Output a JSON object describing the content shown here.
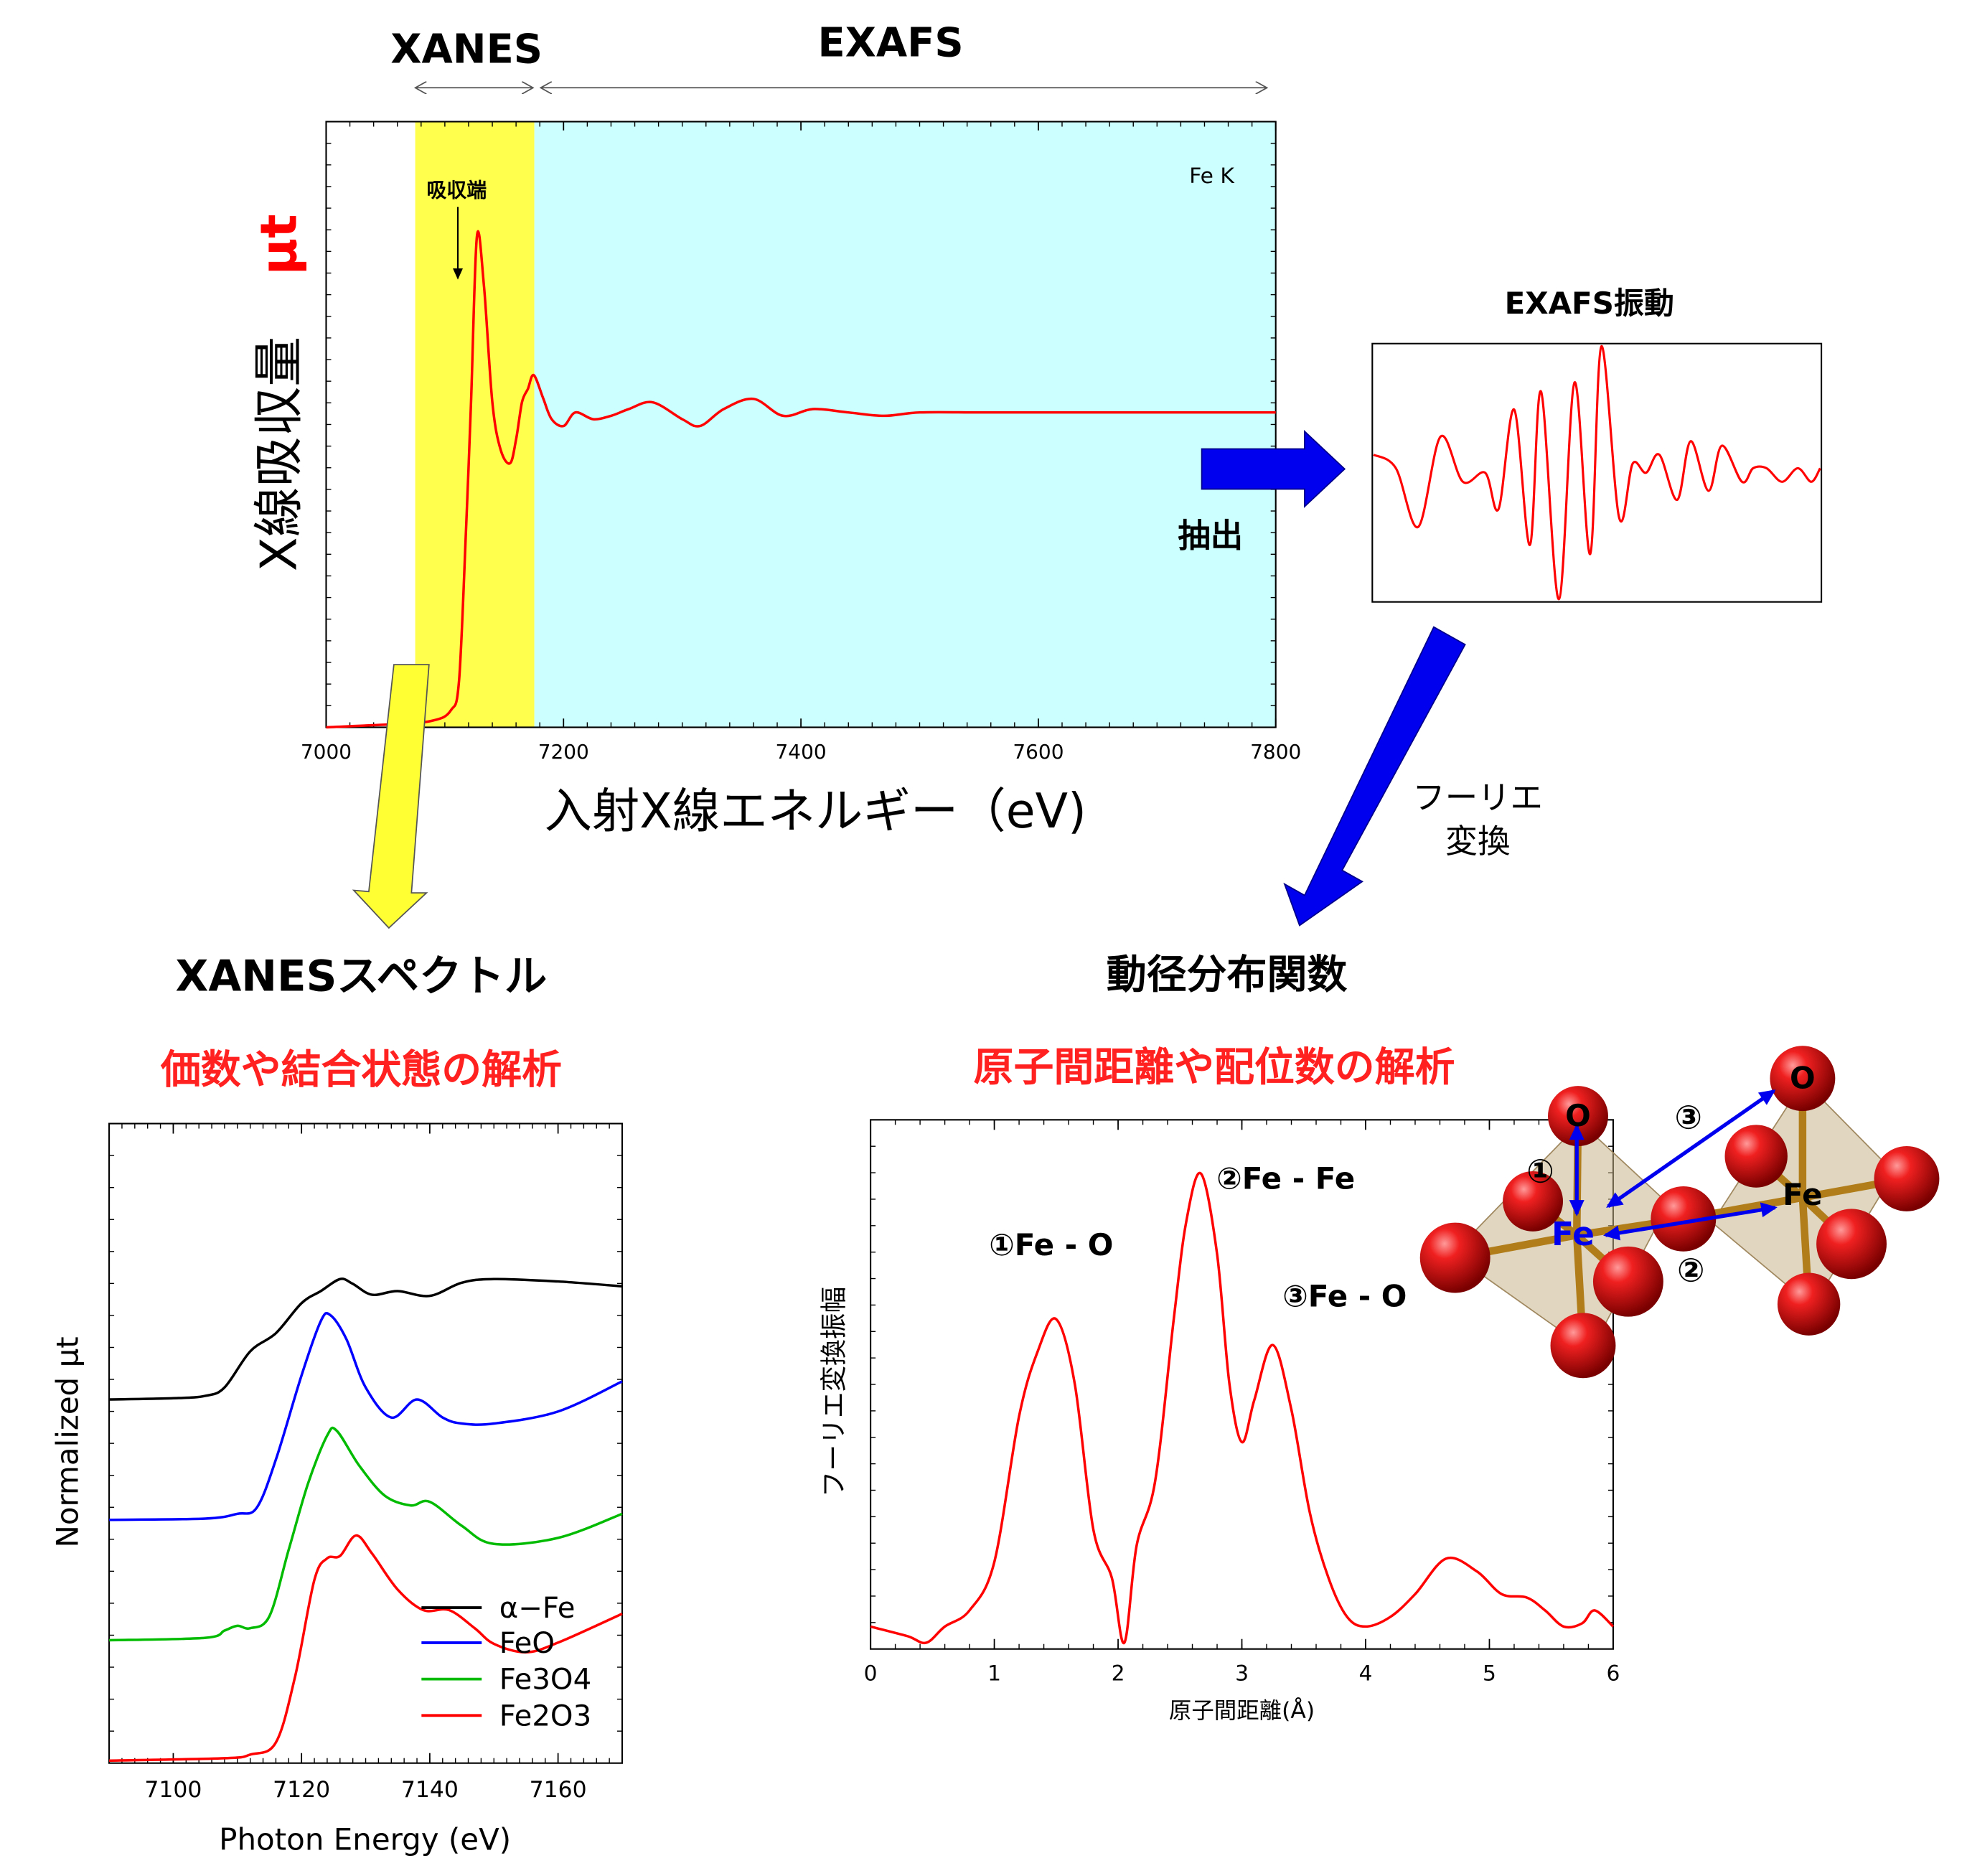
{
  "top": {
    "xanes_label": "XANES",
    "exafs_label": "EXAFS",
    "edge_label": "Fe K",
    "absorption_edge_label": "吸収端",
    "ylabel": "X線吸収量",
    "ylabel_symbol": "μt",
    "xlabel": "入射X線エネルギー（eV)",
    "xticks": [
      "7000",
      "7200",
      "7400",
      "7600",
      "7800"
    ],
    "colors": {
      "xanes_region": "#ffff4d",
      "exafs_region": "#ccffff",
      "curve": "#ff0000"
    }
  },
  "exafs_box": {
    "title": "EXAFS振動",
    "extract_label": "抽出"
  },
  "fourier": {
    "label_line1": "フーリエ",
    "label_line2": "変換"
  },
  "bottom_left": {
    "title": "XANESスペクトル",
    "subtitle": "価数や結合状態の解析",
    "ylabel": "Normalized μt",
    "xlabel": "Photon Energy (eV)",
    "xticks": [
      "7100",
      "7120",
      "7140",
      "7160"
    ],
    "legend": [
      {
        "name": "α−Fe",
        "color": "#000000"
      },
      {
        "name": "FeO",
        "color": "#0000ff"
      },
      {
        "name": "Fe3O4",
        "color": "#00bb00"
      },
      {
        "name": "Fe2O3",
        "color": "#ff0000"
      }
    ]
  },
  "bottom_right": {
    "title": "動径分布関数",
    "subtitle": "原子間距離や配位数の解析",
    "ylabel": "フーリエ変換振幅",
    "xlabel": "原子間距離(Å)",
    "xticks": [
      "0",
      "1",
      "2",
      "3",
      "4",
      "5",
      "6"
    ],
    "peaks": [
      {
        "label": "①Fe - O",
        "r": 1.5
      },
      {
        "label": "②Fe - Fe",
        "r": 2.65
      },
      {
        "label": "③Fe - O",
        "r": 3.25
      }
    ]
  },
  "structure": {
    "atom_o": "O",
    "atom_fe": "Fe",
    "bond_1": "①",
    "bond_2": "②",
    "bond_3": "③"
  },
  "chart_data": [
    {
      "type": "line",
      "xlabel": "入射X線エネルギー（eV)",
      "ylabel": "X線吸収量 μt",
      "xlim": [
        7000,
        7800
      ],
      "annotation": "Fe K",
      "regions": [
        {
          "name": "XANES",
          "x": [
            7075,
            7175
          ]
        },
        {
          "name": "EXAFS",
          "x": [
            7175,
            7800
          ]
        }
      ],
      "series": [
        {
          "x": [
            7000,
            7060,
            7090,
            7105,
            7112,
            7118,
            7122,
            7127,
            7133,
            7140,
            7147,
            7155,
            7160,
            7165,
            7170,
            7175,
            7183,
            7190,
            7200,
            7210,
            7225,
            7240,
            7255,
            7275,
            7300,
            7315,
            7335,
            7360,
            7385,
            7410,
            7440,
            7470,
            7500,
            7550,
            7600,
            7700,
            7800
          ],
          "y": [
            0.0,
            0.01,
            0.02,
            0.05,
            0.14,
            0.6,
            0.95,
            1.45,
            1.3,
            0.96,
            0.82,
            0.78,
            0.85,
            0.96,
            1.0,
            1.04,
            0.97,
            0.91,
            0.89,
            0.93,
            0.91,
            0.92,
            0.94,
            0.96,
            0.91,
            0.89,
            0.94,
            0.97,
            0.92,
            0.94,
            0.93,
            0.92,
            0.93,
            0.93,
            0.93,
            0.93,
            0.93
          ]
        }
      ]
    },
    {
      "type": "line",
      "title": "EXAFS振動",
      "series": [
        {
          "x": [
            0,
            1,
            2,
            3,
            4,
            5,
            5.6,
            6.3,
            7,
            7.5,
            8.3,
            9,
            9.7,
            10.2,
            11,
            11.6,
            12.2,
            12.8,
            13.6,
            14.2,
            15,
            15.6,
            16.5,
            17,
            17.6,
            18.3,
            19,
            19.6,
            20
          ],
          "y": [
            0.2,
            0.05,
            -0.6,
            0.4,
            -0.1,
            0.0,
            -0.4,
            0.7,
            -0.8,
            0.9,
            -1.4,
            1.0,
            -0.9,
            1.4,
            -0.5,
            0.1,
            0.0,
            0.2,
            -0.3,
            0.35,
            -0.2,
            0.3,
            -0.1,
            0.05,
            0.05,
            -0.1,
            0.05,
            -0.1,
            0.05
          ]
        }
      ]
    },
    {
      "type": "line",
      "title": "XANESスペクトル",
      "xlabel": "Photon Energy (eV)",
      "ylabel": "Normalized μt",
      "xlim": [
        7090,
        7170
      ],
      "series": [
        {
          "name": "α−Fe",
          "x": [
            7090,
            7100,
            7105,
            7108,
            7112,
            7116,
            7120,
            7123,
            7126,
            7128,
            7131,
            7135,
            7140,
            7145,
            7150,
            7160,
            7170
          ],
          "y": [
            3.0,
            3.01,
            3.03,
            3.1,
            3.4,
            3.55,
            3.8,
            3.9,
            4.0,
            3.96,
            3.87,
            3.9,
            3.86,
            3.97,
            4.0,
            3.98,
            3.94
          ]
        },
        {
          "name": "FeO",
          "x": [
            7090,
            7105,
            7110,
            7113,
            7116,
            7120,
            7123,
            7124.5,
            7127,
            7130,
            7134,
            7138,
            7142,
            7145,
            7150,
            7160,
            7170
          ],
          "y": [
            2.0,
            2.01,
            2.05,
            2.1,
            2.5,
            3.2,
            3.65,
            3.7,
            3.5,
            3.1,
            2.85,
            3.0,
            2.85,
            2.8,
            2.8,
            2.9,
            3.15
          ]
        },
        {
          "name": "Fe3O4",
          "x": [
            7090,
            7105,
            7108,
            7110,
            7112,
            7115,
            7118,
            7121,
            7124,
            7125.5,
            7129,
            7133,
            7137,
            7140,
            7145,
            7150,
            7160,
            7170
          ],
          "y": [
            1.0,
            1.02,
            1.08,
            1.12,
            1.1,
            1.2,
            1.75,
            2.3,
            2.7,
            2.74,
            2.45,
            2.2,
            2.12,
            2.15,
            1.95,
            1.8,
            1.85,
            2.05
          ]
        },
        {
          "name": "Fe2O3",
          "x": [
            7090,
            7108,
            7112,
            7116,
            7119,
            7122,
            7124,
            7126,
            7128.5,
            7131,
            7135,
            7139,
            7143,
            7147,
            7150,
            7155,
            7160,
            7170
          ],
          "y": [
            0.0,
            0.02,
            0.05,
            0.15,
            0.7,
            1.5,
            1.68,
            1.7,
            1.87,
            1.72,
            1.42,
            1.25,
            1.25,
            1.1,
            0.97,
            0.9,
            0.98,
            1.22
          ]
        }
      ]
    },
    {
      "type": "line",
      "title": "動径分布関数",
      "xlabel": "原子間距離(Å)",
      "ylabel": "フーリエ変換振幅",
      "xlim": [
        0,
        6
      ],
      "series": [
        {
          "x": [
            0,
            0.3,
            0.45,
            0.6,
            0.8,
            1.0,
            1.2,
            1.35,
            1.5,
            1.65,
            1.8,
            1.95,
            2.05,
            2.15,
            2.3,
            2.45,
            2.55,
            2.67,
            2.8,
            2.9,
            3.0,
            3.1,
            3.25,
            3.4,
            3.55,
            3.7,
            3.85,
            4.0,
            4.2,
            4.4,
            4.65,
            4.9,
            5.1,
            5.3,
            5.45,
            5.6,
            5.75,
            5.85,
            6.0
          ],
          "y": [
            0.05,
            0.02,
            0.0,
            0.05,
            0.1,
            0.25,
            0.7,
            0.9,
            1.0,
            0.8,
            0.35,
            0.2,
            0.0,
            0.3,
            0.5,
            1.0,
            1.3,
            1.45,
            1.2,
            0.8,
            0.62,
            0.75,
            0.92,
            0.72,
            0.4,
            0.2,
            0.08,
            0.05,
            0.08,
            0.15,
            0.26,
            0.22,
            0.15,
            0.14,
            0.1,
            0.05,
            0.06,
            0.1,
            0.05
          ]
        }
      ]
    }
  ]
}
